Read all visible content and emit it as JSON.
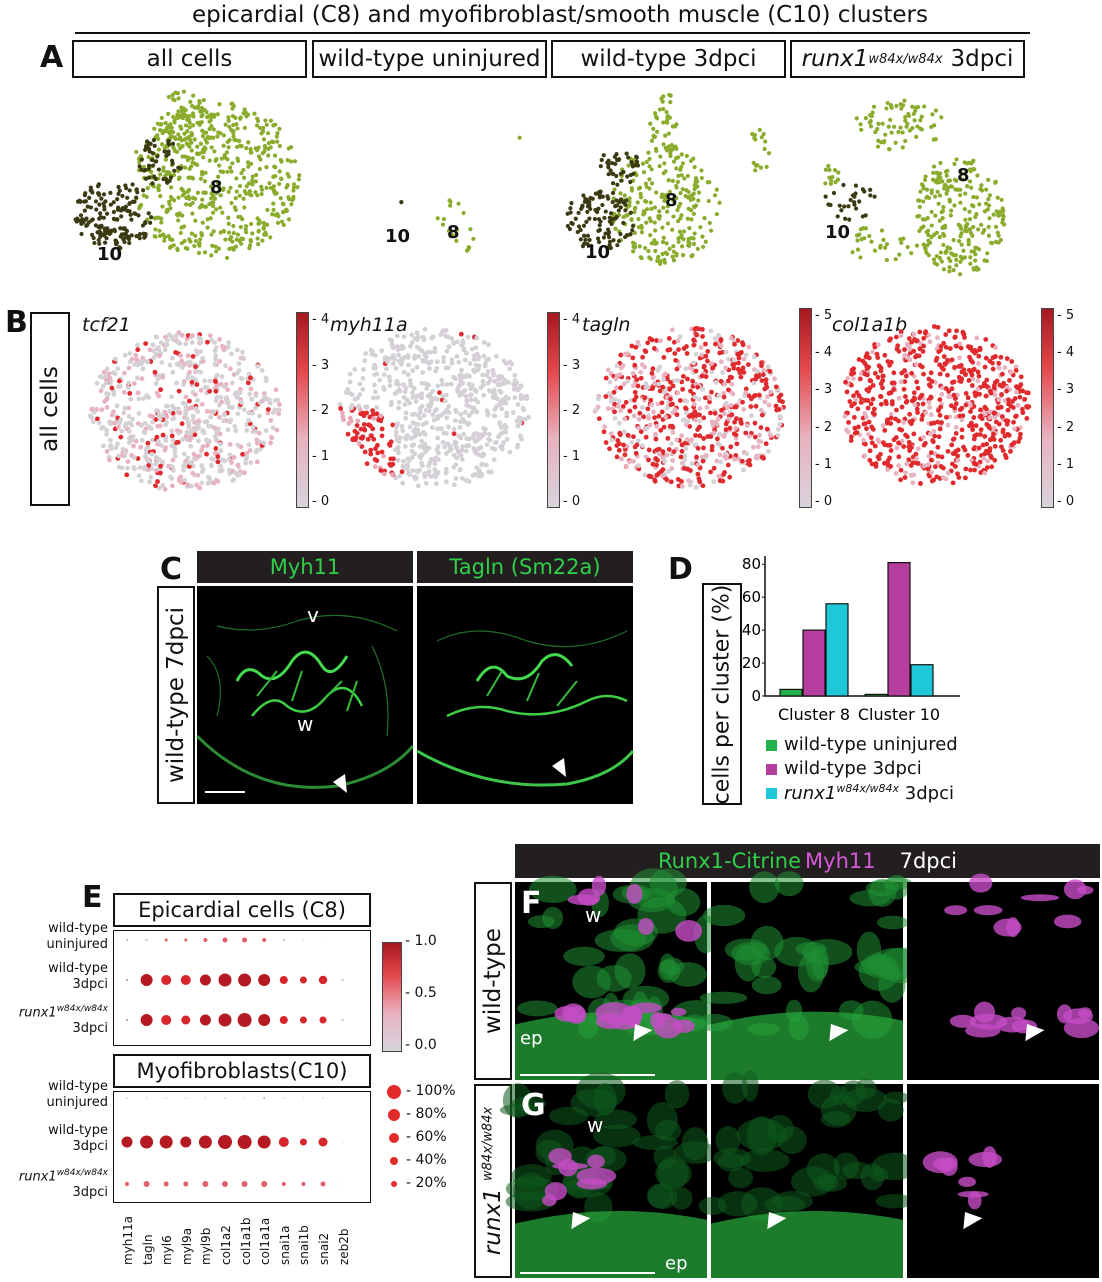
{
  "figure_title": "epicardial (C8) and myofibroblast/smooth muscle (C10) clusters",
  "panels": {
    "A": "A",
    "B": "B",
    "C": "C",
    "D": "D",
    "E": "E",
    "F": "F",
    "G": "G"
  },
  "panel_a": {
    "headers": [
      "all cells",
      "wild-type uninjured",
      "wild-type 3dpci",
      "runx1"
    ],
    "runx_sup": "w84x/w84x",
    "runx_suffix": "3dpci",
    "cluster_labels": {
      "c8": "8",
      "c10": "10"
    }
  },
  "panel_b": {
    "row_label": "all cells",
    "genes": [
      "tcf21",
      "myh11a",
      "tagln",
      "col1a1b"
    ],
    "colorbars": [
      {
        "ticks": [
          "4",
          "3",
          "2",
          "1",
          "0"
        ]
      },
      {
        "ticks": [
          "4",
          "3",
          "2",
          "1",
          "0"
        ]
      },
      {
        "ticks": [
          "5",
          "4",
          "3",
          "2",
          "1",
          "0"
        ]
      },
      {
        "ticks": [
          "5",
          "4",
          "3",
          "2",
          "1",
          "0"
        ]
      }
    ]
  },
  "panel_c": {
    "row_label": "wild-type 7dpci",
    "channels": [
      "Myh11",
      "Tagln (Sm22a)"
    ],
    "annotations": {
      "v": "v",
      "w": "w"
    }
  },
  "chart_data": {
    "type": "bar",
    "categories": [
      "Cluster 8",
      "Cluster 10"
    ],
    "series": [
      {
        "name": "wild-type uninjured",
        "color": "#22b24c",
        "values": [
          4,
          1
        ]
      },
      {
        "name": "wild-type 3dpci",
        "color": "#b43d9d",
        "values": [
          40,
          81
        ]
      },
      {
        "name": "runx1 w84x/w84x 3dpci",
        "color": "#1fc8d8",
        "values": [
          56,
          19
        ]
      }
    ],
    "ylabel": "cells per cluster (%)",
    "yticks": [
      "80",
      "60",
      "40",
      "20",
      "0"
    ],
    "ylim": [
      0,
      85
    ],
    "legend": [
      "wild-type uninjured",
      "wild-type 3dpci",
      "runx1",
      "w84x/w84x",
      "3dpci"
    ]
  },
  "panel_e": {
    "epi_title": "Epicardial cells (C8)",
    "myo_title": "Myofibroblasts(C10)",
    "rows": [
      "wild-type",
      "uninjured",
      "wild-type",
      "3dpci",
      "runx1",
      "w84x/w84x",
      "3dpci"
    ],
    "genes": [
      "myh11a",
      "tagln",
      "myl6",
      "myl9a",
      "myl9b",
      "col1a2",
      "col1a1b",
      "col1a1a",
      "snai1a",
      "snai1b",
      "snai2",
      "zeb2b"
    ],
    "colorbar_ticks": [
      "1.0",
      "0.5",
      "0.0"
    ],
    "size_legend": [
      "100%",
      "80%",
      "60%",
      "40%",
      "20%"
    ]
  },
  "panel_fg": {
    "header_green": "Runx1-Citrine",
    "header_magenta": "Myh11",
    "header_white": "7dpci",
    "row_f": "wild-type",
    "row_g_gene": "runx1",
    "row_g_sup": "w84x/w84x",
    "labels": {
      "w": "w",
      "ep": "ep"
    }
  }
}
